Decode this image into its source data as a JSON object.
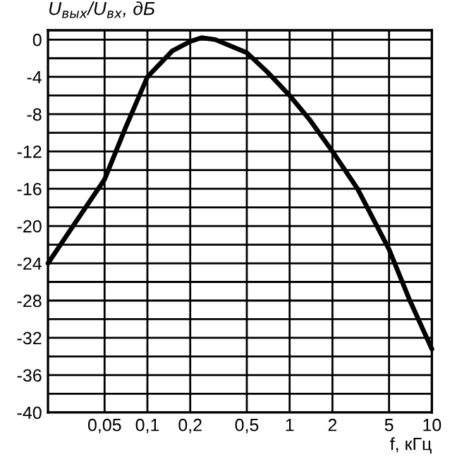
{
  "chart_data": {
    "type": "line",
    "xlabel": "f, кГц",
    "ylabel": "U$_{вых}$/U$_{вх}$, дБ",
    "log": "x",
    "x": [
      0.02,
      0.03,
      0.05,
      0.07,
      0.1,
      0.15,
      0.2,
      0.24,
      0.3,
      0.5,
      0.7,
      1,
      1.4,
      2,
      3,
      5,
      7,
      10
    ],
    "series": [
      {
        "color": "#000000",
        "values": [
          -24,
          -20,
          -15,
          -9.5,
          -4,
          -1.2,
          -0.2,
          0.2,
          0,
          -1.4,
          -3.5,
          -6,
          -8.7,
          -12,
          -16,
          -22.5,
          -28,
          -33.2
        ]
      }
    ],
    "xlim": [
      0.02,
      10
    ],
    "ylim": [
      -40,
      1
    ],
    "xticks": [
      {
        "value": 0.05,
        "label": "0,05"
      },
      {
        "value": 0.1,
        "label": "0,1"
      },
      {
        "value": 0.2,
        "label": "0,2"
      },
      {
        "value": 0.5,
        "label": "0,5"
      },
      1,
      2,
      5,
      10
    ],
    "yticks": [
      -40,
      {
        "value": -38,
        "label": null
      },
      -36,
      {
        "value": -34,
        "label": null
      },
      -32,
      {
        "value": -30,
        "label": null
      },
      -28,
      {
        "value": -26,
        "label": null
      },
      -24,
      {
        "value": -22,
        "label": null
      },
      -20,
      {
        "value": -18,
        "label": null
      },
      -16,
      {
        "value": -14,
        "label": null
      },
      -12,
      {
        "value": -10,
        "label": null
      },
      -8,
      {
        "value": -6,
        "label": null
      },
      -4,
      {
        "value": -2,
        "label": null
      },
      0
    ],
    "grid": true,
    "marker": "none",
    "line_style": "solid"
  }
}
